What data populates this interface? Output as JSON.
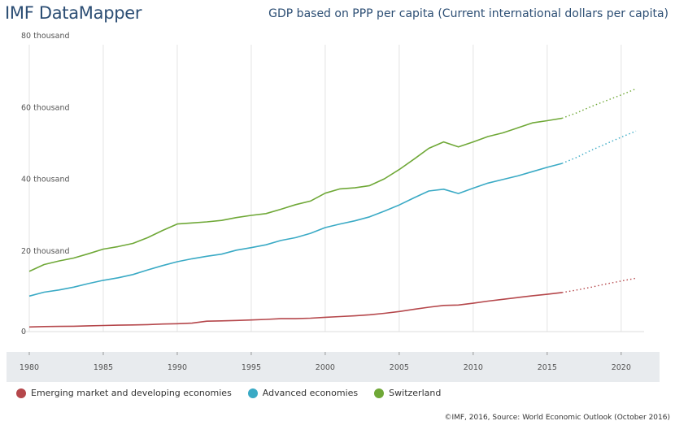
{
  "header": {
    "brand": "IMF DataMapper",
    "title": "GDP based on PPP per capita (Current international dollars per capita)"
  },
  "footer": {
    "credit": "©IMF, 2016, Source: World Economic Outlook (October 2016)"
  },
  "colors": {
    "emerging": "#b5474b",
    "advanced": "#3aaac5",
    "switzerland": "#6fa837",
    "grid": "#e3e3e3",
    "axis_band": "#e8ebee",
    "tick_text": "#555555"
  },
  "chart_data": {
    "type": "line",
    "title": "GDP based on PPP per capita (Current international dollars per capita)",
    "xlim": [
      1980,
      2021
    ],
    "ylim": [
      0,
      80000
    ],
    "x_ticks": [
      1980,
      1985,
      1990,
      1995,
      2000,
      2005,
      2010,
      2015,
      2020
    ],
    "x_tick_labels": [
      "1980",
      "1985",
      "1990",
      "1995",
      "2000",
      "2005",
      "2010",
      "2015",
      "2020"
    ],
    "y_ticks": [
      0,
      20000,
      40000,
      60000,
      80000
    ],
    "y_tick_labels": [
      "0",
      "20 thousand",
      "40 thousand",
      "60 thousand",
      "80 thousand"
    ],
    "grid": true,
    "legend_position": "bottom-left",
    "projection_start": 2016,
    "projection_style": "dotted",
    "x": [
      1980,
      1981,
      1982,
      1983,
      1984,
      1985,
      1986,
      1987,
      1988,
      1989,
      1990,
      1991,
      1992,
      1993,
      1994,
      1995,
      1996,
      1997,
      1998,
      1999,
      2000,
      2001,
      2002,
      2003,
      2004,
      2005,
      2006,
      2007,
      2008,
      2009,
      2010,
      2011,
      2012,
      2013,
      2014,
      2015,
      2016,
      2017,
      2018,
      2019,
      2020,
      2021
    ],
    "series": [
      {
        "key": "emerging",
        "name": "Emerging market and developing economies",
        "values": [
          1300,
          1400,
          1450,
          1500,
          1600,
          1700,
          1800,
          1850,
          1950,
          2100,
          2200,
          2350,
          2900,
          3000,
          3100,
          3250,
          3400,
          3600,
          3600,
          3750,
          4000,
          4200,
          4400,
          4700,
          5100,
          5600,
          6200,
          6800,
          7300,
          7400,
          7900,
          8500,
          9000,
          9500,
          10000,
          10400,
          10900,
          11600,
          12400,
          13300,
          14100,
          14900
        ]
      },
      {
        "key": "advanced",
        "name": "Advanced economies",
        "values": [
          9900,
          11000,
          11600,
          12400,
          13400,
          14300,
          15000,
          15900,
          17200,
          18400,
          19500,
          20300,
          21000,
          21600,
          22700,
          23400,
          24200,
          25400,
          26200,
          27400,
          29000,
          30000,
          30900,
          32000,
          33600,
          35300,
          37300,
          39200,
          39700,
          38500,
          40000,
          41400,
          42400,
          43400,
          44600,
          45800,
          46900,
          48600,
          50600,
          52400,
          54200,
          55900
        ]
      },
      {
        "key": "switzerland",
        "name": "Switzerland",
        "values": [
          16800,
          18700,
          19700,
          20500,
          21700,
          23000,
          23700,
          24600,
          26200,
          28200,
          30000,
          30300,
          30600,
          31000,
          31800,
          32400,
          32900,
          34100,
          35400,
          36400,
          38600,
          39800,
          40100,
          40700,
          42600,
          45200,
          48100,
          51100,
          52900,
          51500,
          52900,
          54400,
          55400,
          56800,
          58200,
          58800,
          59500,
          61000,
          62800,
          64400,
          66000,
          67700
        ]
      }
    ]
  }
}
